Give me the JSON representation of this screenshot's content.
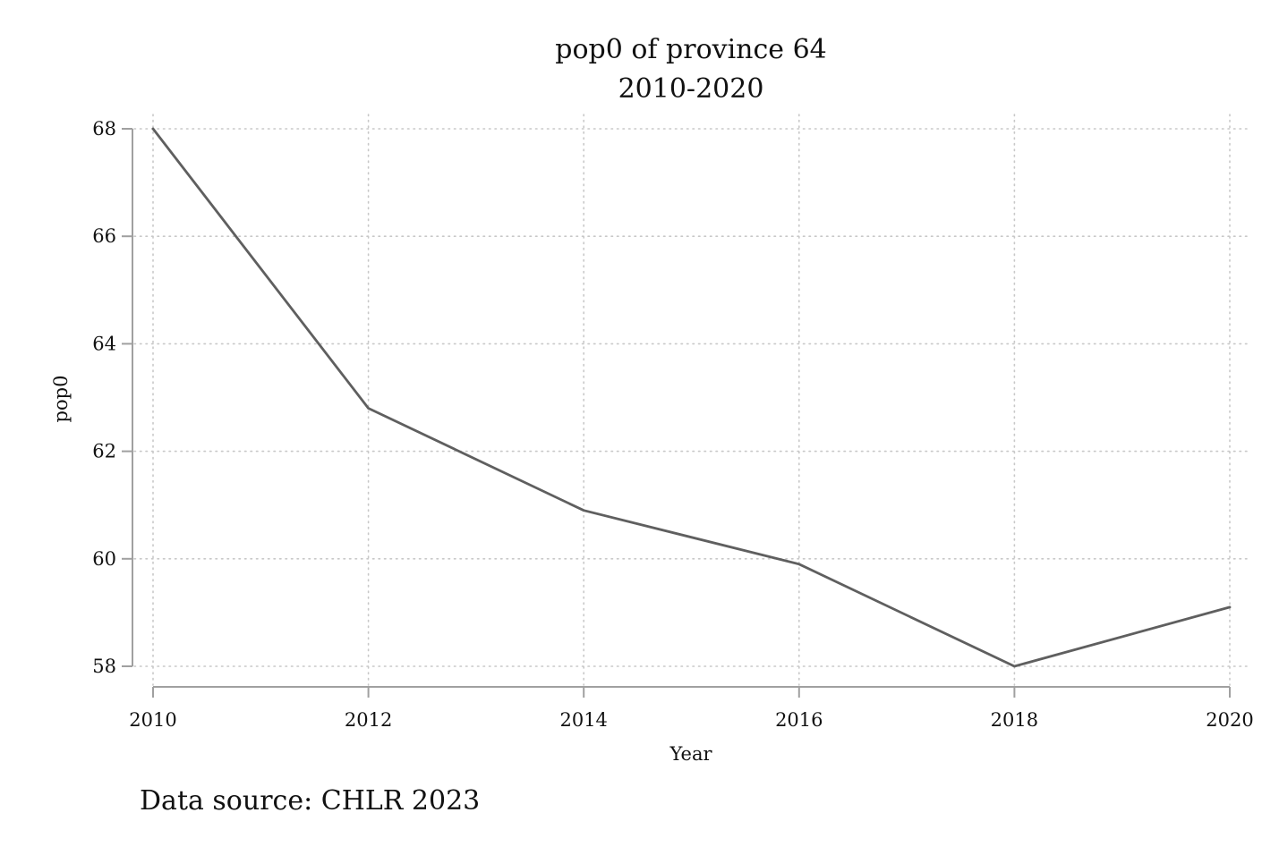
{
  "chart_data": {
    "type": "line",
    "title": "pop0 of province 64",
    "subtitle": "2010-2020",
    "xlabel": "Year",
    "ylabel": "pop0",
    "note": "Data source: CHLR 2023",
    "x": [
      2010,
      2012,
      2014,
      2016,
      2018,
      2020
    ],
    "series": [
      {
        "values": [
          68.0,
          62.8,
          60.9,
          59.9,
          58.0,
          59.1
        ]
      }
    ],
    "xticks": [
      2010,
      2012,
      2014,
      2016,
      2018,
      2020
    ],
    "yticks": [
      58,
      60,
      62,
      64,
      66,
      68
    ],
    "xlim": [
      2010,
      2020
    ],
    "ylim": [
      58,
      68
    ],
    "grid": true,
    "line_color": "#5f5f5f",
    "axis_color": "#a0a0a0",
    "grid_color": "#c8c8c8"
  }
}
